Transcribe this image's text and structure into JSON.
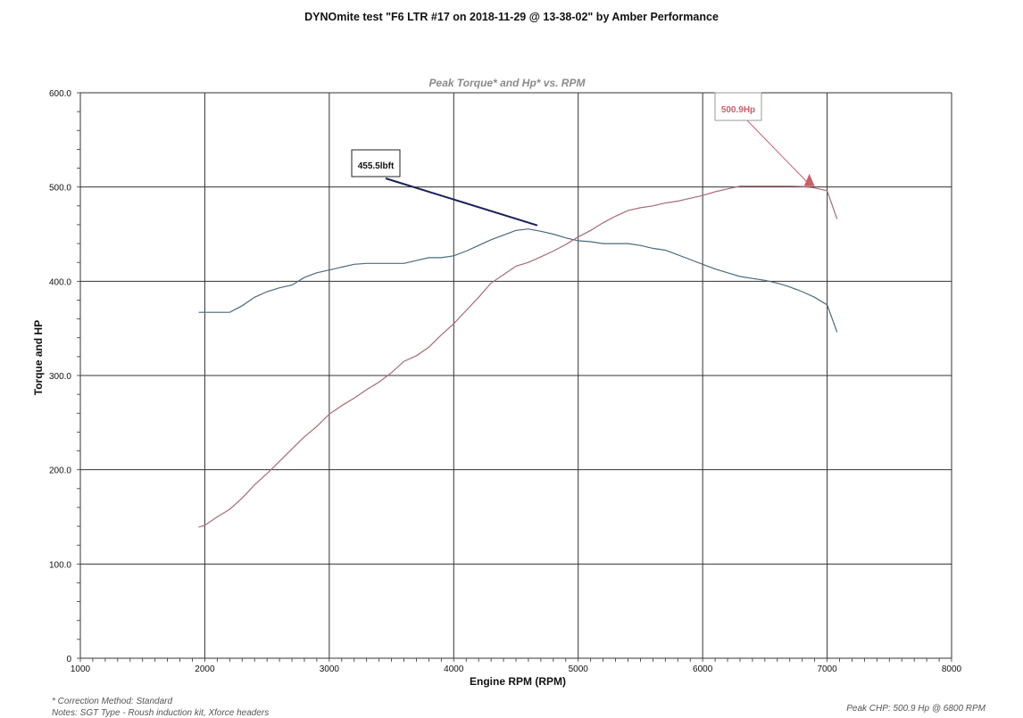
{
  "page": {
    "title": "DYNOmite test \"F6 LTR #17 on 2018-11-29 @ 13-38-02\" by Amber Performance",
    "notes": {
      "correction": "* Correction Method: Standard",
      "notes_line": "Notes: SGT Type - Roush induction kit, Xforce headers",
      "peak": "Peak CHP: 500.9 Hp @ 6800 RPM"
    }
  },
  "chart_data": {
    "type": "line",
    "title": "Peak Torque* and Hp* vs. RPM",
    "xlabel": "Engine RPM (RPM)",
    "ylabel": "Torque and HP",
    "xlim": [
      1000,
      8000
    ],
    "ylim": [
      0,
      600
    ],
    "x_ticks": [
      "1000",
      "2000",
      "3000",
      "4000",
      "5000",
      "6000",
      "7000",
      "8000"
    ],
    "y_ticks": [
      "0",
      "100.0",
      "200.0",
      "300.0",
      "400.0",
      "500.0",
      "600.0"
    ],
    "grid": true,
    "legend": "none",
    "series": [
      {
        "color": "#4a6a7a",
        "x": [
          1950,
          2100,
          2200,
          2300,
          2400,
          2500,
          2600,
          2700,
          2800,
          2900,
          3000,
          3100,
          3200,
          3300,
          3400,
          3500,
          3600,
          3700,
          3800,
          3900,
          4000,
          4100,
          4200,
          4300,
          4400,
          4500,
          4600,
          4700,
          4800,
          4900,
          5000,
          5100,
          5200,
          5300,
          5400,
          5500,
          5600,
          5700,
          5800,
          5900,
          6000,
          6100,
          6200,
          6300,
          6400,
          6500,
          6600,
          6700,
          6800,
          6900,
          7000,
          7080
        ],
        "values": [
          367,
          367,
          367,
          374,
          383,
          389,
          393,
          396,
          404,
          409,
          412,
          415,
          418,
          419,
          419,
          419,
          419,
          422,
          425,
          425,
          427,
          432,
          438,
          444,
          449,
          454,
          455.5,
          453,
          450,
          446,
          443,
          442,
          440,
          440,
          440,
          438,
          435,
          433,
          428,
          423,
          418,
          413,
          409,
          405,
          403,
          401,
          398,
          394,
          389,
          383,
          375,
          346
        ]
      },
      {
        "color": "#a86a76",
        "x": [
          1950,
          2000,
          2100,
          2200,
          2300,
          2400,
          2500,
          2600,
          2700,
          2800,
          2900,
          3000,
          3100,
          3200,
          3300,
          3400,
          3500,
          3600,
          3700,
          3800,
          3900,
          4000,
          4100,
          4200,
          4300,
          4400,
          4500,
          4600,
          4700,
          4800,
          4900,
          5000,
          5100,
          5200,
          5300,
          5400,
          5500,
          5600,
          5700,
          5800,
          5900,
          6000,
          6100,
          6200,
          6300,
          6400,
          6500,
          6600,
          6700,
          6800,
          6900,
          7000,
          7080
        ],
        "values": [
          139,
          141,
          150,
          158,
          170,
          184,
          196,
          209,
          222,
          235,
          246,
          259,
          268,
          276,
          285,
          293,
          303,
          315,
          321,
          330,
          343,
          355,
          369,
          383,
          398,
          407,
          416,
          420,
          426,
          432,
          439,
          447,
          454,
          462,
          469,
          475,
          478,
          480,
          483,
          485,
          488,
          491,
          495,
          498,
          500.9,
          500.9,
          500.9,
          500.9,
          500.9,
          500.5,
          499,
          496,
          466
        ]
      }
    ],
    "annotations": [
      {
        "text": "455.5lbft",
        "x": 4600,
        "y": 455.5,
        "color": "#1a1f5a"
      },
      {
        "text": "500.9Hp",
        "x": 6800,
        "y": 500.9,
        "color": "#c8606c"
      }
    ]
  }
}
